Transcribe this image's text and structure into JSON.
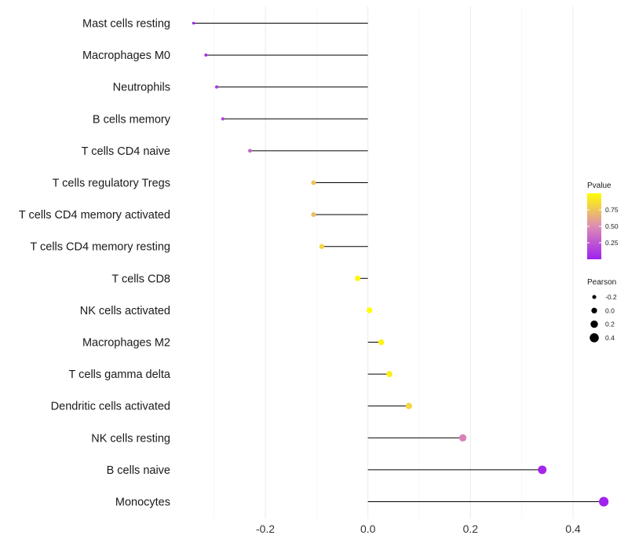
{
  "chart_data": {
    "type": "lollipop",
    "xlabel": "",
    "ylabel": "",
    "xlim": [
      -0.37,
      0.495
    ],
    "x_ticks": [
      -0.2,
      0.0,
      0.2,
      0.4
    ],
    "x_tick_labels": [
      "-0.2",
      "0.0",
      "0.2",
      "0.4"
    ],
    "grid": true,
    "categories": [
      "Mast cells resting",
      "Macrophages M0",
      "Neutrophils",
      "B cells memory",
      "T cells CD4 naive",
      "T cells regulatory  Tregs ",
      "T cells CD4 memory activated",
      "T cells CD4 memory resting",
      "T cells CD8",
      "NK cells activated",
      "Macrophages M2",
      "T cells gamma delta",
      "Dendritic cells activated",
      "NK cells resting",
      "B cells naive",
      "Monocytes"
    ],
    "pearson": [
      -0.34,
      -0.316,
      -0.295,
      -0.283,
      -0.23,
      -0.106,
      -0.106,
      -0.09,
      -0.02,
      0.003,
      0.026,
      0.042,
      0.08,
      0.185,
      0.34,
      0.46
    ],
    "pvalue": [
      0.02,
      0.05,
      0.1,
      0.14,
      0.3,
      0.75,
      0.72,
      0.82,
      0.97,
      1.0,
      0.95,
      0.93,
      0.82,
      0.45,
      0.03,
      0.01
    ],
    "legend_color": {
      "title": "Pvalue",
      "breaks": [
        0.75,
        0.5,
        0.25
      ],
      "labels": [
        "0.75",
        "0.50",
        "0.25"
      ],
      "low_color": "#a020f0",
      "mid_color": "#dd8cb3",
      "high_color": "#ffff00"
    },
    "legend_size": {
      "title": "Pearson",
      "values": [
        -0.2,
        0.0,
        0.2,
        0.4
      ],
      "labels": [
        "-0.2",
        "0.0",
        "0.2",
        "0.4"
      ]
    },
    "legend_position": "right"
  }
}
